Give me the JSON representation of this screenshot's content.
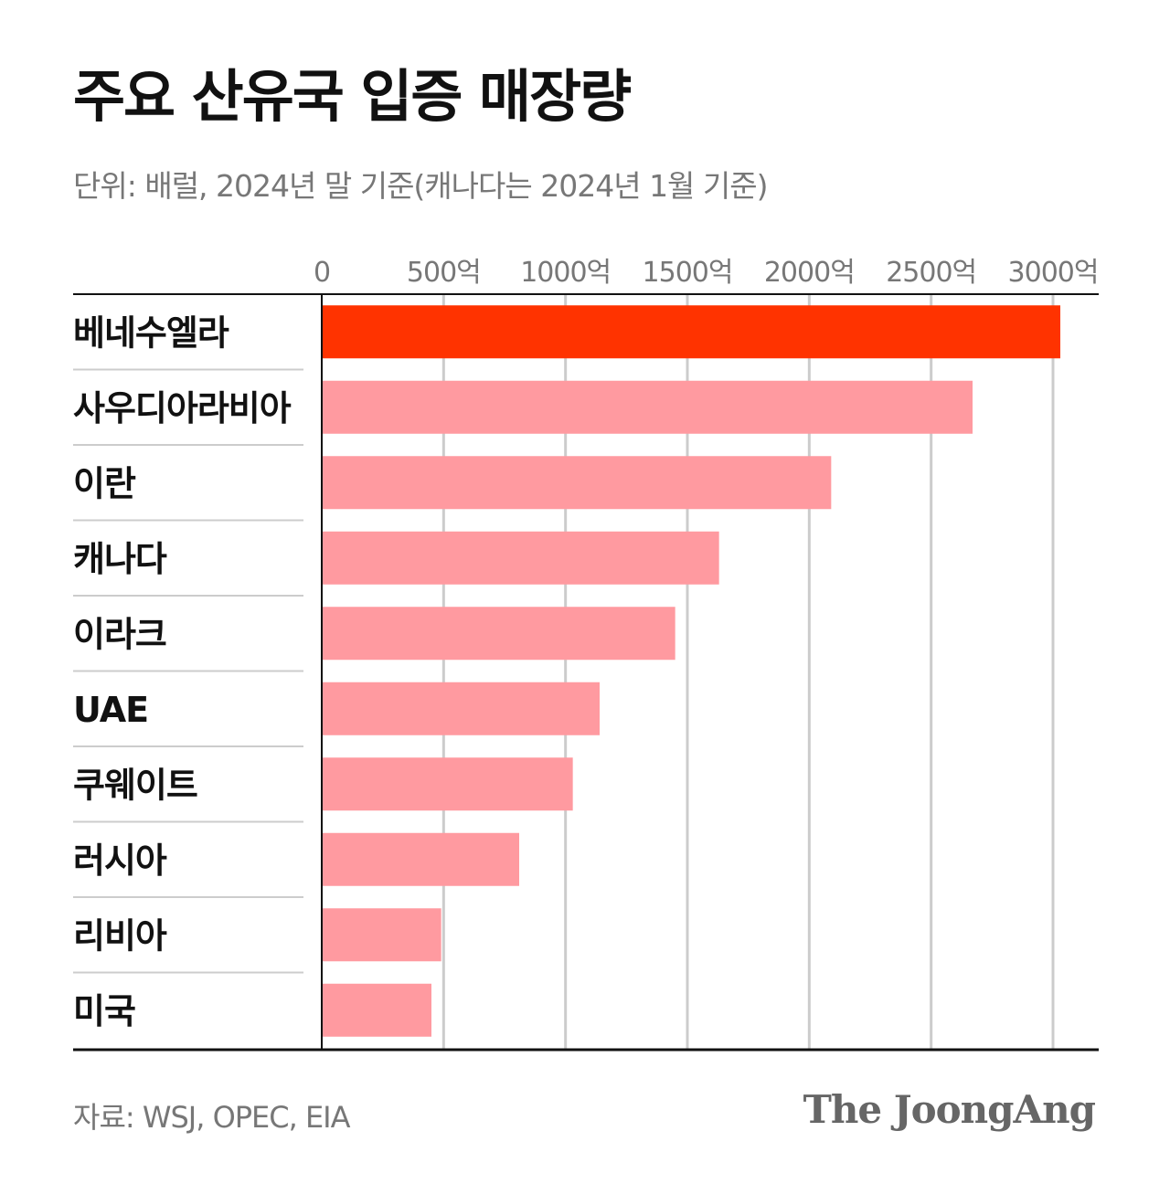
{
  "title": "주요 산유국 입증 매장량",
  "subtitle": "단위: 배럴, 2024년 말 기준(캐나다는 2024년 1월 기준)",
  "source": "자료: WSJ, OPEC, EIA",
  "logo": "The JoongAng",
  "colors": {
    "highlight": "#ff3300",
    "bar": "#ff9aa0",
    "grid": "#cccccc",
    "axis": "#111111"
  },
  "chart_data": {
    "type": "bar",
    "orientation": "horizontal",
    "categories": [
      "베네수엘라",
      "사우디아라비아",
      "이란",
      "캐나다",
      "이라크",
      "UAE",
      "쿠웨이트",
      "러시아",
      "리비아",
      "미국"
    ],
    "values": [
      3030,
      2670,
      2090,
      1630,
      1450,
      1140,
      1030,
      810,
      490,
      450
    ],
    "highlight_index": 0,
    "xlim": [
      0,
      3000
    ],
    "ticks": [
      0,
      500,
      1000,
      1500,
      2000,
      2500,
      3000
    ],
    "tick_labels": [
      "0",
      "500억",
      "1000억",
      "1500억",
      "2000억",
      "2500억",
      "3000억"
    ],
    "grid": true
  }
}
